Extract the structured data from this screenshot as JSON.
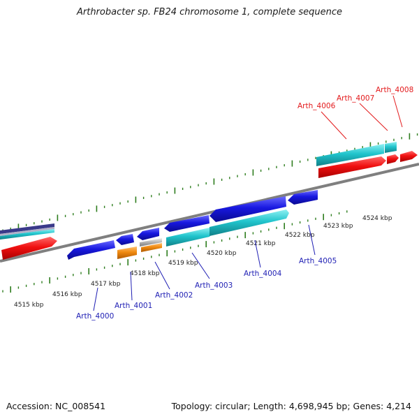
{
  "header": {
    "title": "Arthrobacter sp. FB24 chromosome 1, complete sequence"
  },
  "footer": {
    "accession": "Accession: NC_008541",
    "summary": "Topology: circular; Length: 4,698,945 bp; Genes: 4,214"
  },
  "colors": {
    "axis": "#7f7f7f",
    "tick": "#2e7d1e",
    "label_top": "#e31a1c",
    "label_bottom": "#1f1fb4",
    "gene_red": "#f01010",
    "gene_blue": "#1818e0",
    "gene_cyan": "#20c4cc",
    "gene_orange": "#f08a10",
    "gene_grey": "#b8b8b8",
    "gene_navy": "#3a3a8a"
  },
  "kbp_labels": [
    "4515 kbp",
    "4516 kbp",
    "4517 kbp",
    "4518 kbp",
    "4519 kbp",
    "4520 kbp",
    "4521 kbp",
    "4522 kbp",
    "4523 kbp",
    "4524 kbp"
  ],
  "gene_labels_top": [
    "Arth_4006",
    "Arth_4007",
    "Arth_4008"
  ],
  "gene_labels_bottom": [
    "Arth_4000",
    "Arth_4001",
    "Arth_4002",
    "Arth_4003",
    "Arth_4004",
    "Arth_4005"
  ]
}
